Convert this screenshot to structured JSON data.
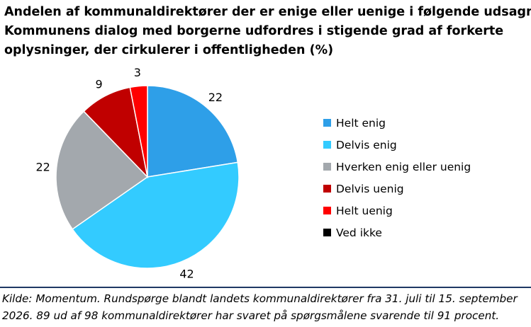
{
  "title_lines": [
    "Andelen af kommunaldirektører der er enige eller uenige i følgende udsagn:",
    "Kommunens dialog med borgerne udfordres i stigende grad af forkerte",
    "oplysninger, der cirkulerer i offentligheden (%)"
  ],
  "chart_data": {
    "type": "pie",
    "title": "Andelen af kommunaldirektører der er enige eller uenige i følgende udsagn: Kommunens dialog med borgerne udfordres i stigende grad af forkerte oplysninger, der cirkulerer i offentligheden (%)",
    "categories": [
      "Helt enig",
      "Delvis enig",
      "Hverken enig eller uenig",
      "Delvis uenig",
      "Helt uenig",
      "Ved ikke"
    ],
    "values": [
      22,
      42,
      22,
      9,
      3,
      0
    ],
    "data_labels": [
      "22",
      "42",
      "22",
      "9",
      "3",
      ""
    ],
    "colors": [
      "#2e9fe8",
      "#33cbff",
      "#a3a8ad",
      "#c00000",
      "#ff0000",
      "#000000"
    ],
    "legend_position": "right"
  },
  "source_lines": [
    "Kilde: Momentum. Rundspørge blandt landets kommunaldirektører fra 31. juli til 15. september",
    "2026. 89 ud af 98 kommunaldirektører har svaret på spørgsmålene svarende til 91 procent."
  ]
}
